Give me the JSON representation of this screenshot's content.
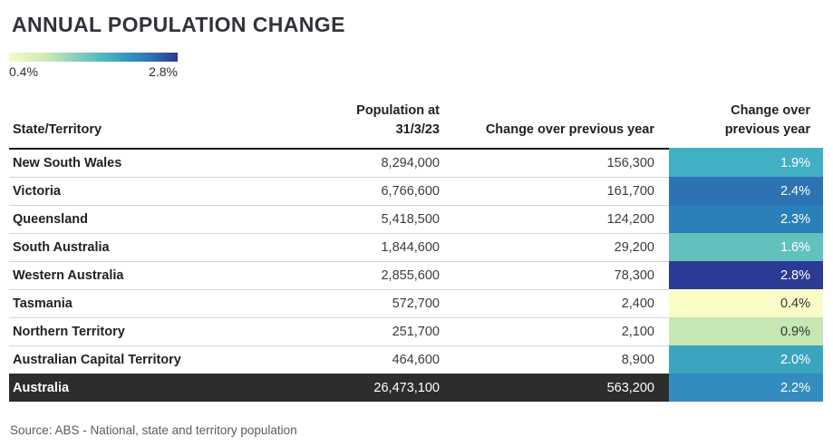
{
  "title": "ANNUAL POPULATION CHANGE",
  "legend": {
    "min_label": "0.4%",
    "max_label": "2.8%",
    "gradient_start": "#f7fac5",
    "gradient_mid": "#52b9c1",
    "gradient_end": "#2b3990"
  },
  "table": {
    "columns": {
      "state": "State/Territory",
      "population": "Population at\n31/3/23",
      "change": "Change over previous year",
      "pct": "Change over\nprevious year"
    },
    "rows": [
      {
        "state": "New South Wales",
        "population": "8,294,000",
        "change": "156,300",
        "pct": "1.9%",
        "cell_color": "#41afc4",
        "text_color": "#ffffff",
        "total": false
      },
      {
        "state": "Victoria",
        "population": "6,766,600",
        "change": "161,700",
        "pct": "2.4%",
        "cell_color": "#2d72b3",
        "text_color": "#ffffff",
        "total": false
      },
      {
        "state": "Queensland",
        "population": "5,418,500",
        "change": "124,200",
        "pct": "2.3%",
        "cell_color": "#2c80ba",
        "text_color": "#ffffff",
        "total": false
      },
      {
        "state": "South Australia",
        "population": "1,844,600",
        "change": "29,200",
        "pct": "1.6%",
        "cell_color": "#62c1bd",
        "text_color": "#ffffff",
        "total": false
      },
      {
        "state": "Western Australia",
        "population": "2,855,600",
        "change": "78,300",
        "pct": "2.8%",
        "cell_color": "#2b3a94",
        "text_color": "#ffffff",
        "total": false
      },
      {
        "state": "Tasmania",
        "population": "572,700",
        "change": "2,400",
        "pct": "0.4%",
        "cell_color": "#fafcc8",
        "text_color": "#333333",
        "total": false
      },
      {
        "state": "Northern Territory",
        "population": "251,700",
        "change": "2,100",
        "pct": "0.9%",
        "cell_color": "#c6e6b3",
        "text_color": "#333333",
        "total": false
      },
      {
        "state": "Australian Capital Territory",
        "population": "464,600",
        "change": "8,900",
        "pct": "2.0%",
        "cell_color": "#3ba5c0",
        "text_color": "#ffffff",
        "total": false
      },
      {
        "state": "Australia",
        "population": "26,473,100",
        "change": "563,200",
        "pct": "2.2%",
        "cell_color": "#338cc0",
        "text_color": "#ffffff",
        "total": true
      }
    ]
  },
  "source": "Source: ABS - National, state and territory population",
  "chart_data": {
    "type": "table",
    "title": "ANNUAL POPULATION CHANGE",
    "columns": [
      "State/Territory",
      "Population at 31/3/23",
      "Change over previous year",
      "Change over previous year (%)"
    ],
    "rows": [
      [
        "New South Wales",
        8294000,
        156300,
        1.9
      ],
      [
        "Victoria",
        6766600,
        161700,
        2.4
      ],
      [
        "Queensland",
        5418500,
        124200,
        2.3
      ],
      [
        "South Australia",
        1844600,
        29200,
        1.6
      ],
      [
        "Western Australia",
        2855600,
        78300,
        2.8
      ],
      [
        "Tasmania",
        572700,
        2400,
        0.4
      ],
      [
        "Northern Territory",
        251700,
        2100,
        0.9
      ],
      [
        "Australian Capital Territory",
        464600,
        8900,
        2.0
      ],
      [
        "Australia",
        26473100,
        563200,
        2.2
      ]
    ],
    "color_scale": {
      "column": "Change over previous year (%)",
      "min": 0.4,
      "max": 2.8,
      "min_color": "#f7fac5",
      "max_color": "#2b3990"
    },
    "legend_position": "top-left",
    "source": "Source: ABS - National, state and territory population"
  }
}
